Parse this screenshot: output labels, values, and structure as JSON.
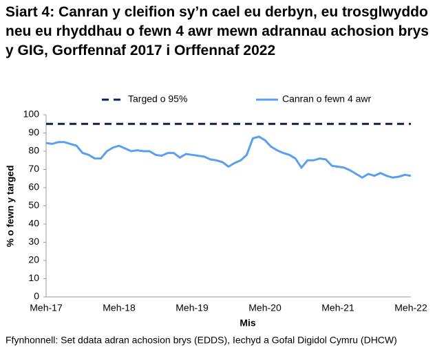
{
  "chart_data": {
    "type": "line",
    "title": "Siart 4: Canran y cleifion sy’n cael eu derbyn, eu trosglwyddo neu eu rhyddhau o fewn 4 awr mewn adrannau achosion brys y GIG, Gorffennaf 2017 i Orffennaf 2022",
    "y_label": "% o fewn y targed",
    "x_label": "Mis",
    "source": "Ffynhonnell: Set ddata adran achosion brys (EDDS), Iechyd a Gofal Digidol Cymru (DHCW)",
    "categories": [
      "Meh-17",
      null,
      null,
      null,
      null,
      null,
      null,
      null,
      null,
      null,
      null,
      null,
      "Meh-18",
      null,
      null,
      null,
      null,
      null,
      null,
      null,
      null,
      null,
      null,
      null,
      "Meh-19",
      null,
      null,
      null,
      null,
      null,
      null,
      null,
      null,
      null,
      null,
      null,
      "Meh-20",
      null,
      null,
      null,
      null,
      null,
      null,
      null,
      null,
      null,
      null,
      null,
      "Meh-21",
      null,
      null,
      null,
      null,
      null,
      null,
      null,
      null,
      null,
      null,
      null,
      "Meh-22"
    ],
    "series": [
      {
        "name": "Targed o 95%",
        "color": "#0b2150",
        "line_style": "dashed",
        "values": [
          95,
          95,
          95,
          95,
          95,
          95,
          95,
          95,
          95,
          95,
          95,
          95,
          95,
          95,
          95,
          95,
          95,
          95,
          95,
          95,
          95,
          95,
          95,
          95,
          95,
          95,
          95,
          95,
          95,
          95,
          95,
          95,
          95,
          95,
          95,
          95,
          95,
          95,
          95,
          95,
          95,
          95,
          95,
          95,
          95,
          95,
          95,
          95,
          95,
          95,
          95,
          95,
          95,
          95,
          95,
          95,
          95,
          95,
          95,
          95,
          95
        ]
      },
      {
        "name": "Canran o fewn 4 awr",
        "color": "#5b9ef0",
        "line_style": "solid",
        "values": [
          84.5,
          84,
          85,
          85,
          84,
          83,
          79,
          78,
          76,
          76,
          80,
          82,
          83,
          81.5,
          80,
          80.5,
          80,
          80,
          78,
          77.5,
          79,
          79,
          76.5,
          78.5,
          78,
          77.5,
          77,
          75.5,
          75,
          74,
          71.5,
          73.5,
          75,
          78,
          87,
          88,
          86,
          82.5,
          80.5,
          79,
          78,
          76,
          71,
          75,
          75,
          76,
          75.5,
          72,
          71.5,
          71,
          69.5,
          67.5,
          65.5,
          67.5,
          66.5,
          68,
          66.5,
          65.5,
          66,
          67,
          66.5
        ]
      }
    ],
    "ylim": [
      0,
      100
    ],
    "yticks": [
      0,
      10,
      20,
      30,
      40,
      50,
      60,
      70,
      80,
      90,
      100
    ],
    "grid": false
  }
}
